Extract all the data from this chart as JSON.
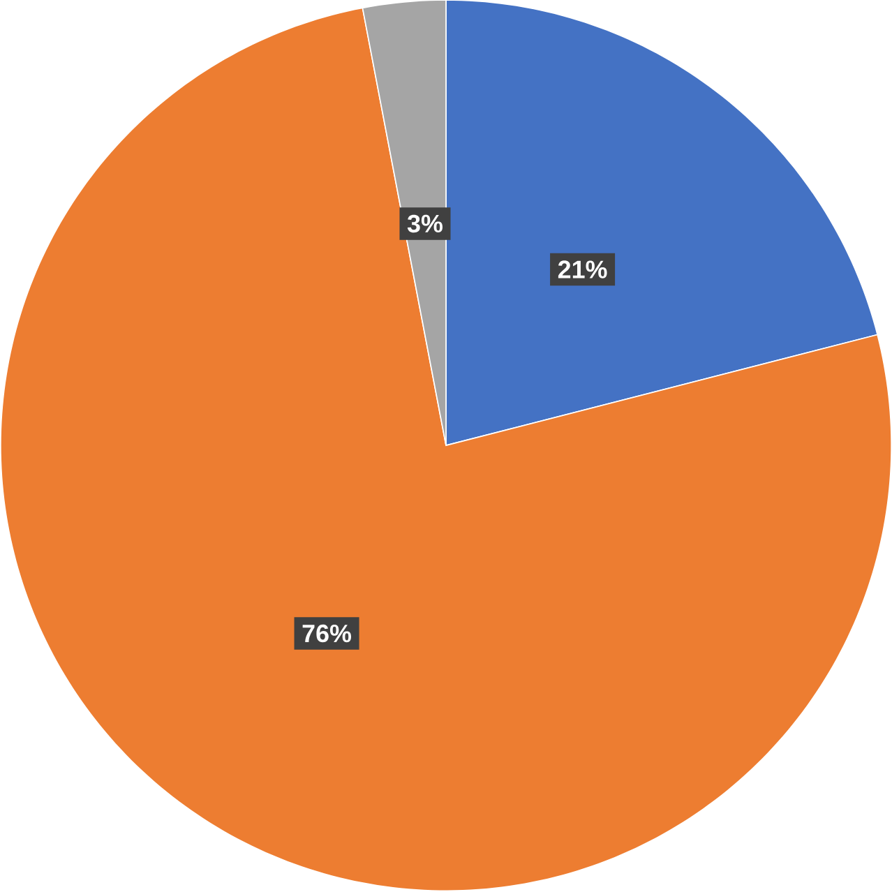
{
  "chart_data": {
    "type": "pie",
    "categories": [
      null,
      null,
      null
    ],
    "values": [
      21,
      76,
      3
    ],
    "colors": [
      "#4472c4",
      "#ed7d31",
      "#a5a5a5"
    ],
    "value_labels": [
      "21%",
      "76%",
      "3%"
    ]
  }
}
